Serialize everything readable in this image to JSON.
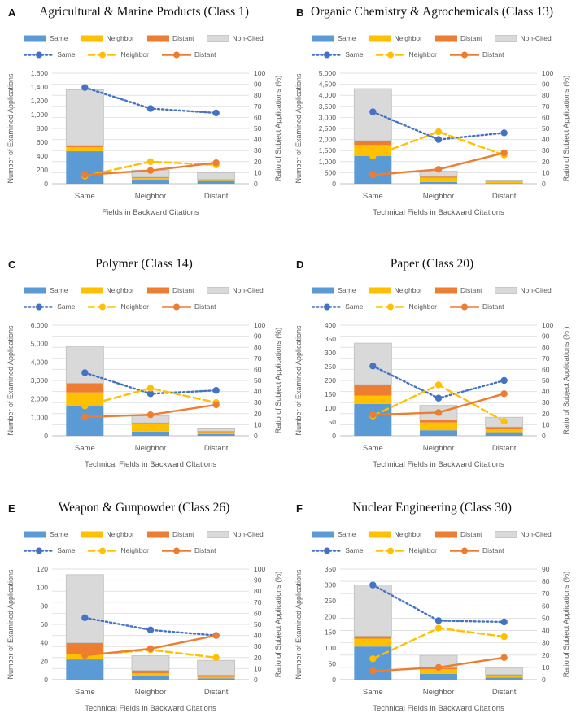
{
  "figure": {
    "description": "Six-panel figure of stacked bar charts with overlaid ratio lines",
    "panels_order": [
      "A",
      "B",
      "C",
      "D",
      "E",
      "F"
    ]
  },
  "colors": {
    "same_bar": "#5B9BD5",
    "same_line": "#4472C4",
    "neighbor": "#FFC000",
    "distant": "#ED7D31",
    "non_cited": "#D9D9D9",
    "non_cited_border": "#BFBFBF",
    "grid": "#E2E2E2",
    "axis_line": "#BFBFBF",
    "text": "#595959",
    "title_text": "#111111"
  },
  "legend": {
    "bars": [
      "Same",
      "Neighbor",
      "Distant",
      "Non-Cited"
    ],
    "lines": [
      "Same",
      "Neighbor",
      "Distant"
    ]
  },
  "chart_data": [
    {
      "type": "bar+line",
      "letter": "A",
      "title": "Agricultural & Marine Products (Class 1)",
      "categories": [
        "Same",
        "Neighbor",
        "Distant"
      ],
      "xlabel": "Fields in Backward Citations",
      "y_left": {
        "label": "Number of Examined Applications",
        "min": 0,
        "max": 1600,
        "step": 200
      },
      "y_right": {
        "label": "Ratio of Subject Applications  (%)",
        "min": 0,
        "max": 100,
        "step": 10
      },
      "bar_series": [
        {
          "name": "Same",
          "values": [
            470,
            60,
            40
          ]
        },
        {
          "name": "Neighbor",
          "values": [
            60,
            20,
            12
          ]
        },
        {
          "name": "Distant",
          "values": [
            25,
            15,
            12
          ]
        },
        {
          "name": "Non-Cited",
          "values": [
            805,
            103,
            96
          ]
        }
      ],
      "line_series": [
        {
          "name": "Same",
          "values": [
            87,
            68,
            64
          ]
        },
        {
          "name": "Neighbor",
          "values": [
            7,
            20,
            17
          ]
        },
        {
          "name": "Distant",
          "values": [
            8,
            12,
            19
          ]
        }
      ]
    },
    {
      "type": "bar+line",
      "letter": "B",
      "title": "Organic Chemistry & Agrochemicals (Class 13)",
      "categories": [
        "Same",
        "Neighbor",
        "Distant"
      ],
      "xlabel": "Technical Fields in Backward Citations",
      "y_left": {
        "label": "Number of Examined Applications",
        "min": 0,
        "max": 5000,
        "step": 500
      },
      "y_right": {
        "label": "Ratio of Subject Applications  (%)",
        "min": 0,
        "max": 100,
        "step": 10
      },
      "bar_series": [
        {
          "name": "Same",
          "values": [
            1250,
            80,
            20
          ]
        },
        {
          "name": "Neighbor",
          "values": [
            500,
            190,
            90
          ]
        },
        {
          "name": "Distant",
          "values": [
            200,
            60,
            15
          ]
        },
        {
          "name": "Non-Cited",
          "values": [
            2350,
            240,
            25
          ]
        }
      ],
      "line_series": [
        {
          "name": "Same",
          "values": [
            65,
            40,
            46
          ]
        },
        {
          "name": "Neighbor",
          "values": [
            25,
            47,
            26
          ]
        },
        {
          "name": "Distant",
          "values": [
            8,
            13,
            28
          ]
        }
      ]
    },
    {
      "type": "bar+line",
      "letter": "C",
      "title": "Polymer (Class 14)",
      "categories": [
        "Same",
        "Neighbor",
        "Distant"
      ],
      "xlabel": "Technical Fields in Backward CItations",
      "y_left": {
        "label": "Number of Examined Applications",
        "min": 0,
        "max": 6000,
        "step": 1000
      },
      "y_right": {
        "label": "Ratio of Subject Applications  (%)",
        "min": 0,
        "max": 100,
        "step": 10
      },
      "bar_series": [
        {
          "name": "Same",
          "values": [
            1600,
            230,
            100
          ]
        },
        {
          "name": "Neighbor",
          "values": [
            750,
            390,
            100
          ]
        },
        {
          "name": "Distant",
          "values": [
            500,
            80,
            50
          ]
        },
        {
          "name": "Non-Cited",
          "values": [
            2000,
            380,
            130
          ]
        }
      ],
      "line_series": [
        {
          "name": "Same",
          "values": [
            57,
            38,
            41
          ]
        },
        {
          "name": "Neighbor",
          "values": [
            27,
            43,
            30
          ]
        },
        {
          "name": "Distant",
          "values": [
            17,
            19,
            28
          ]
        }
      ]
    },
    {
      "type": "bar+line",
      "letter": "D",
      "title": "Paper (Class 20)",
      "categories": [
        "Same",
        "Neighbor",
        "Distant"
      ],
      "xlabel": "Technical Fields in Backward Citations",
      "y_left": {
        "label": "Number of Examined Applications",
        "min": 0,
        "max": 400,
        "step": 50
      },
      "y_right": {
        "label": "Ratio of Subject Applications  (% )",
        "min": 0,
        "max": 100,
        "step": 10
      },
      "bar_series": [
        {
          "name": "Same",
          "values": [
            115,
            20,
            13
          ]
        },
        {
          "name": "Neighbor",
          "values": [
            30,
            28,
            10
          ]
        },
        {
          "name": "Distant",
          "values": [
            40,
            9,
            9
          ]
        },
        {
          "name": "Non-Cited",
          "values": [
            150,
            53,
            35
          ]
        }
      ],
      "line_series": [
        {
          "name": "Same",
          "values": [
            63,
            34,
            50
          ]
        },
        {
          "name": "Neighbor",
          "values": [
            18,
            46,
            13
          ]
        },
        {
          "name": "Distant",
          "values": [
            19,
            21,
            38
          ]
        }
      ]
    },
    {
      "type": "bar+line",
      "letter": "E",
      "title": "Weapon & Gunpowder (Class 26)",
      "categories": [
        "Same",
        "Neighbor",
        "Distant"
      ],
      "xlabel": "Technical Fields in Backward Citations",
      "y_left": {
        "label": "Number of Examined Applications",
        "min": 0,
        "max": 120,
        "step": 20
      },
      "y_right": {
        "label": "Ratio of Subject Applications  (%)",
        "min": 0,
        "max": 100,
        "step": 10
      },
      "bar_series": [
        {
          "name": "Same",
          "values": [
            22,
            4,
            1.5
          ]
        },
        {
          "name": "Neighbor",
          "values": [
            6,
            3,
            1.5
          ]
        },
        {
          "name": "Distant",
          "values": [
            12,
            3,
            2
          ]
        },
        {
          "name": "Non-Cited",
          "values": [
            74,
            16,
            16
          ]
        }
      ],
      "line_series": [
        {
          "name": "Same",
          "values": [
            56,
            45,
            40
          ]
        },
        {
          "name": "Neighbor",
          "values": [
            22,
            27,
            20
          ]
        },
        {
          "name": "Distant",
          "values": [
            22,
            28,
            40
          ]
        }
      ]
    },
    {
      "type": "bar+line",
      "letter": "F",
      "title": "Nuclear Engineering (Class 30)",
      "categories": [
        "Same",
        "Neighbor",
        "Distant"
      ],
      "xlabel": "Technical Fields in Backward Citations",
      "y_left": {
        "label": "Number of Examined Applications",
        "min": 0,
        "max": 350,
        "step": 50
      },
      "y_right": {
        "label": "Ratio of Subject Applications  (%)",
        "min": 0,
        "max": 90,
        "step": 10
      },
      "bar_series": [
        {
          "name": "Same",
          "values": [
            105,
            18,
            7
          ]
        },
        {
          "name": "Neighbor",
          "values": [
            25,
            15,
            6
          ]
        },
        {
          "name": "Distant",
          "values": [
            8,
            5,
            3
          ]
        },
        {
          "name": "Non-Cited",
          "values": [
            162,
            39,
            22
          ]
        }
      ],
      "line_series": [
        {
          "name": "Same",
          "values": [
            77,
            48,
            47
          ]
        },
        {
          "name": "Neighbor",
          "values": [
            17,
            42,
            35
          ]
        },
        {
          "name": "Distant",
          "values": [
            7,
            10,
            18
          ]
        }
      ]
    }
  ]
}
